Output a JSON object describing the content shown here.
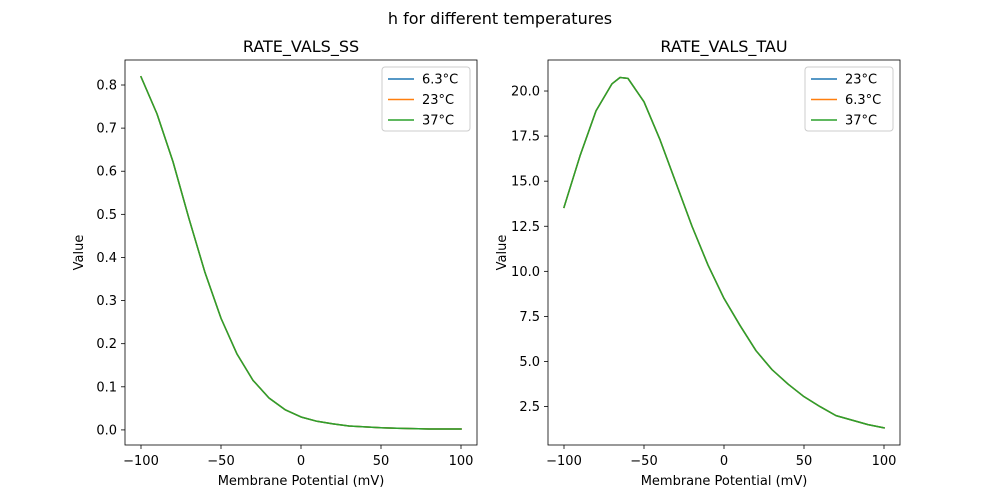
{
  "figure": {
    "title": "h for different temperatures"
  },
  "colors": {
    "c0": "#1f77b4",
    "c1": "#ff7f0e",
    "c2": "#2ca02c"
  },
  "chart_data": [
    {
      "type": "line",
      "title": "RATE_VALS_SS",
      "xlabel": "Membrane Potential (mV)",
      "ylabel": "Value",
      "xlim": [
        -110,
        110
      ],
      "ylim": [
        -0.035,
        0.858
      ],
      "xticks": [
        -100,
        -50,
        0,
        50,
        100
      ],
      "xtick_labels": [
        "−100",
        "−50",
        "0",
        "50",
        "100"
      ],
      "yticks": [
        0.0,
        0.1,
        0.2,
        0.3,
        0.4,
        0.5,
        0.6,
        0.7,
        0.8
      ],
      "ytick_labels": [
        "0.0",
        "0.1",
        "0.2",
        "0.3",
        "0.4",
        "0.5",
        "0.6",
        "0.7",
        "0.8"
      ],
      "legend_position": "top-right",
      "grid": false,
      "x": [
        -100,
        -90,
        -80,
        -70,
        -60,
        -50,
        -40,
        -30,
        -20,
        -10,
        0,
        10,
        20,
        30,
        40,
        50,
        60,
        70,
        80,
        90,
        100
      ],
      "series": [
        {
          "name": "6.3°C",
          "color": "#1f77b4",
          "values": [
            0.819,
            0.733,
            0.622,
            0.49,
            0.365,
            0.259,
            0.176,
            0.115,
            0.074,
            0.047,
            0.03,
            0.02,
            0.014,
            0.009,
            0.007,
            0.005,
            0.004,
            0.003,
            0.002,
            0.002,
            0.002
          ]
        },
        {
          "name": "23°C",
          "color": "#ff7f0e",
          "values": [
            0.819,
            0.733,
            0.622,
            0.49,
            0.365,
            0.259,
            0.176,
            0.115,
            0.074,
            0.047,
            0.03,
            0.02,
            0.014,
            0.009,
            0.007,
            0.005,
            0.004,
            0.003,
            0.002,
            0.002,
            0.002
          ]
        },
        {
          "name": "37°C",
          "color": "#2ca02c",
          "values": [
            0.819,
            0.733,
            0.622,
            0.49,
            0.365,
            0.259,
            0.176,
            0.115,
            0.074,
            0.047,
            0.03,
            0.02,
            0.014,
            0.009,
            0.007,
            0.005,
            0.004,
            0.003,
            0.002,
            0.002,
            0.002
          ]
        }
      ]
    },
    {
      "type": "line",
      "title": "RATE_VALS_TAU",
      "xlabel": "Membrane Potential (mV)",
      "ylabel": "Value",
      "xlim": [
        -110,
        110
      ],
      "ylim": [
        0.37,
        21.72
      ],
      "xticks": [
        -100,
        -50,
        0,
        50,
        100
      ],
      "xtick_labels": [
        "−100",
        "−50",
        "0",
        "50",
        "100"
      ],
      "yticks": [
        2.5,
        5.0,
        7.5,
        10.0,
        12.5,
        15.0,
        17.5,
        20.0
      ],
      "ytick_labels": [
        "2.5",
        "5.0",
        "7.5",
        "10.0",
        "12.5",
        "15.0",
        "17.5",
        "20.0"
      ],
      "legend_position": "top-right",
      "grid": false,
      "x": [
        -100,
        -90,
        -80,
        -70,
        -65,
        -60,
        -50,
        -40,
        -30,
        -20,
        -10,
        0,
        10,
        20,
        30,
        40,
        50,
        60,
        70,
        80,
        90,
        100
      ],
      "series": [
        {
          "name": "23°C",
          "color": "#1f77b4",
          "values": [
            13.55,
            16.4,
            18.9,
            20.4,
            20.75,
            20.7,
            19.4,
            17.3,
            14.9,
            12.5,
            10.35,
            8.5,
            7.0,
            5.6,
            4.55,
            3.75,
            3.05,
            2.5,
            2.0,
            1.75,
            1.5,
            1.32
          ]
        },
        {
          "name": "6.3°C",
          "color": "#ff7f0e",
          "values": [
            13.55,
            16.4,
            18.9,
            20.4,
            20.75,
            20.7,
            19.4,
            17.3,
            14.9,
            12.5,
            10.35,
            8.5,
            7.0,
            5.6,
            4.55,
            3.75,
            3.05,
            2.5,
            2.0,
            1.75,
            1.5,
            1.32
          ]
        },
        {
          "name": "37°C",
          "color": "#2ca02c",
          "values": [
            13.55,
            16.4,
            18.9,
            20.4,
            20.75,
            20.7,
            19.4,
            17.3,
            14.9,
            12.5,
            10.35,
            8.5,
            7.0,
            5.6,
            4.55,
            3.75,
            3.05,
            2.5,
            2.0,
            1.75,
            1.5,
            1.32
          ]
        }
      ]
    }
  ]
}
